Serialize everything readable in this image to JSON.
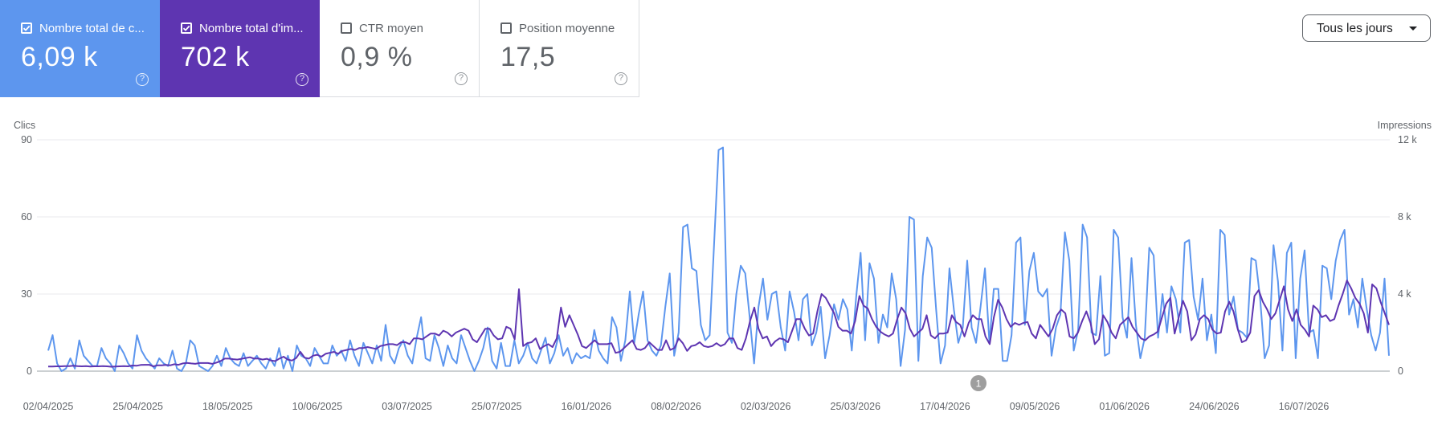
{
  "cards": [
    {
      "label": "Nombre total de c...",
      "value": "6,09 k",
      "checked": true,
      "color": "#5d96ee"
    },
    {
      "label": "Nombre total d'im...",
      "value": "702 k",
      "checked": true,
      "color": "#5e35b1"
    },
    {
      "label": "CTR moyen",
      "value": "0,9 %",
      "checked": false
    },
    {
      "label": "Position moyenne",
      "value": "17,5",
      "checked": false
    }
  ],
  "help_icon": "?",
  "dropdown": {
    "label": "Tous les jours"
  },
  "annotation_marker": "1",
  "chart_data": {
    "type": "line",
    "left_axis_label": "Clics",
    "right_axis_label": "Impressions",
    "left_ticks": [
      "0",
      "30",
      "60",
      "90"
    ],
    "right_ticks": [
      "0",
      "4 k",
      "8 k",
      "12 k"
    ],
    "ylim_left": [
      0,
      90
    ],
    "ylim_right": [
      0,
      12000
    ],
    "x_tick_labels": [
      "02/04/2025",
      "25/04/2025",
      "18/05/2025",
      "10/06/2025",
      "03/07/2025",
      "25/07/2025",
      "16/01/2026",
      "08/02/2026",
      "02/03/2026",
      "25/03/2026",
      "17/04/2026",
      "09/05/2026",
      "01/06/2026",
      "24/06/2026",
      "16/07/2026"
    ],
    "series": [
      {
        "name": "Nombre total de clics",
        "color": "#5d96ee",
        "axis": "left",
        "values": [
          8,
          14,
          3,
          0,
          1,
          5,
          1,
          12,
          6,
          4,
          2,
          2,
          9,
          5,
          3,
          0,
          10,
          7,
          3,
          1,
          14,
          8,
          5,
          3,
          1,
          5,
          3,
          2,
          8,
          1,
          0,
          3,
          12,
          10,
          2,
          1,
          0,
          2,
          6,
          2,
          9,
          5,
          3,
          2,
          7,
          2,
          4,
          6,
          3,
          1,
          5,
          2,
          9,
          1,
          6,
          0,
          10,
          6,
          5,
          2,
          9,
          6,
          3,
          3,
          10,
          6,
          8,
          4,
          12,
          6,
          2,
          11,
          7,
          3,
          10,
          4,
          18,
          6,
          3,
          9,
          12,
          6,
          3,
          13,
          21,
          5,
          4,
          14,
          9,
          2,
          10,
          5,
          3,
          14,
          9,
          4,
          0,
          4,
          9,
          17,
          4,
          1,
          11,
          2,
          2,
          12,
          3,
          6,
          11,
          5,
          3,
          8,
          13,
          3,
          7,
          14,
          6,
          9,
          3,
          7,
          5,
          6,
          5,
          16,
          8,
          5,
          3,
          21,
          17,
          4,
          12,
          31,
          11,
          22,
          31,
          12,
          8,
          6,
          10,
          25,
          38,
          6,
          15,
          56,
          57,
          40,
          39,
          18,
          12,
          14,
          50,
          86,
          87,
          15,
          11,
          30,
          41,
          38,
          21,
          3,
          25,
          36,
          20,
          30,
          31,
          17,
          8,
          31,
          23,
          12,
          28,
          30,
          10,
          15,
          25,
          5,
          14,
          26,
          20,
          28,
          24,
          8,
          29,
          46,
          12,
          42,
          36,
          11,
          22,
          17,
          38,
          28,
          2,
          16,
          60,
          59,
          4,
          37,
          52,
          48,
          24,
          3,
          10,
          40,
          24,
          11,
          17,
          43,
          17,
          11,
          25,
          40,
          11,
          32,
          32,
          4,
          4,
          14,
          50,
          52,
          18,
          39,
          46,
          31,
          29,
          32,
          6,
          17,
          22,
          54,
          43,
          8,
          16,
          57,
          52,
          15,
          14,
          37,
          6,
          7,
          55,
          52,
          21,
          13,
          44,
          18,
          5,
          13,
          48,
          45,
          13,
          30,
          15,
          33,
          28,
          15,
          50,
          51,
          29,
          20,
          36,
          12,
          22,
          7,
          55,
          53,
          22,
          29,
          16,
          15,
          13,
          44,
          43,
          28,
          5,
          10,
          49,
          35,
          8,
          46,
          50,
          5,
          36,
          47,
          15,
          16,
          5,
          41,
          40,
          28,
          43,
          51,
          55,
          22,
          28,
          17,
          36,
          24,
          14,
          8,
          15,
          36,
          6
        ]
      },
      {
        "name": "Nombre total d'impressions",
        "color": "#5e35b1",
        "axis": "right",
        "values": [
          240,
          240,
          250,
          250,
          260,
          260,
          280,
          260,
          250,
          260,
          240,
          250,
          250,
          260,
          250,
          230,
          240,
          250,
          260,
          250,
          290,
          280,
          320,
          330,
          330,
          250,
          300,
          300,
          320,
          300,
          360,
          330,
          400,
          430,
          400,
          380,
          420,
          420,
          420,
          380,
          440,
          520,
          650,
          650,
          620,
          600,
          640,
          680,
          720,
          650,
          660,
          600,
          640,
          550,
          520,
          650,
          750,
          600,
          550,
          680,
          1000,
          700,
          650,
          800,
          850,
          750,
          900,
          950,
          1000,
          900,
          1050,
          1100,
          1150,
          1100,
          1200,
          1200,
          1250,
          1200,
          1150,
          1300,
          1350,
          1400,
          1400,
          1350,
          1500,
          1500,
          1400,
          1700,
          1700,
          1650,
          1800,
          1950,
          1950,
          1850,
          2100,
          2000,
          1800,
          2000,
          2100,
          2200,
          2100,
          1650,
          1500,
          1850,
          2200,
          2200,
          1850,
          1650,
          1700,
          2300,
          2200,
          1650,
          4250,
          1300,
          1450,
          1500,
          1700,
          1150,
          1300,
          1400,
          1250,
          1700,
          3300,
          2300,
          2900,
          2400,
          1900,
          1300,
          1200,
          1400,
          1600,
          1400,
          1400,
          1400,
          1450,
          950,
          1000,
          1200,
          1400,
          1600,
          1150,
          1100,
          1200,
          1500,
          1300,
          1100,
          1100,
          1600,
          1100,
          1200,
          1700,
          1450,
          1050,
          1300,
          1350,
          1500,
          1300,
          1250,
          1300,
          1450,
          1300,
          1400,
          1700,
          1700,
          1200,
          1100,
          1700,
          2600,
          3300,
          2200,
          1700,
          1800,
          1300,
          1550,
          1700,
          1650,
          1500,
          2100,
          2700,
          2700,
          2200,
          1850,
          1950,
          3100,
          4000,
          3800,
          3400,
          3000,
          2300,
          2100,
          2100,
          1950,
          2600,
          3900,
          3400,
          3250,
          2700,
          2300,
          2050,
          1900,
          1800,
          1950,
          2700,
          3300,
          3000,
          2200,
          1800,
          2000,
          2200,
          2900,
          1850,
          1700,
          1950,
          1950,
          2000,
          2900,
          2550,
          2400,
          1800,
          2500,
          2900,
          2700,
          2700,
          1800,
          1400,
          2800,
          3700,
          3300,
          2700,
          2300,
          2500,
          2400,
          2500,
          2550,
          1950,
          1700,
          2400,
          2100,
          1800,
          2200,
          2900,
          3200,
          3000,
          1800,
          1700,
          2000,
          2600,
          3100,
          2500,
          1400,
          1650,
          2900,
          2550,
          2000,
          1700,
          2400,
          2600,
          2800,
          2300,
          2000,
          1700,
          1600,
          1800,
          1900,
          2050,
          2800,
          3500,
          3800,
          1950,
          2800,
          3650,
          3100,
          1600,
          1900,
          2700,
          2900,
          2700,
          2150,
          1950,
          2000,
          3100,
          3600,
          3100,
          2200,
          1500,
          1600,
          2000,
          3900,
          4200,
          3600,
          3200,
          2700,
          3000,
          3700,
          4400,
          3200,
          2600,
          3200,
          2400,
          2150,
          1800,
          3400,
          3200,
          2800,
          2900,
          2600,
          2700,
          3400,
          4000,
          4700,
          4300,
          3800,
          3500,
          3000,
          2000,
          4500,
          4300,
          3600,
          3000,
          2400
        ]
      }
    ]
  }
}
